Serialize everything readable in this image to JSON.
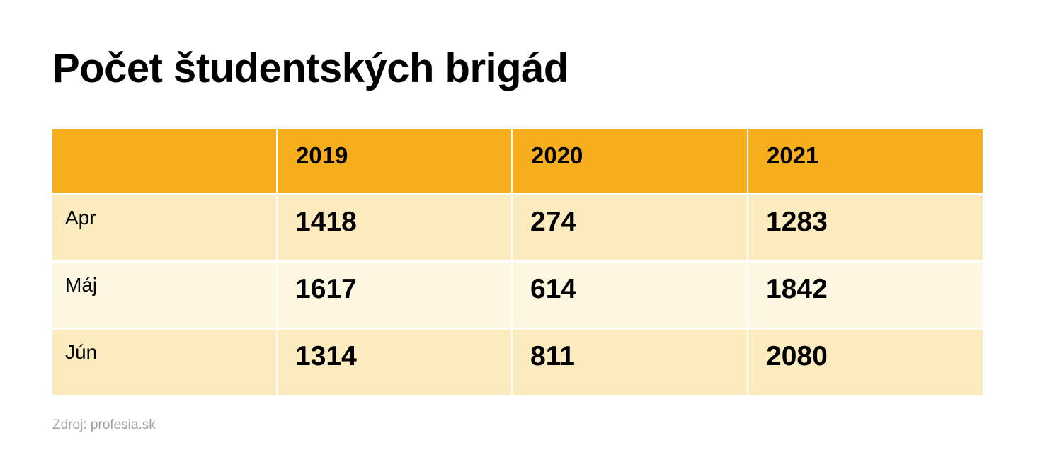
{
  "title": "Počet študentských brigád",
  "source": "Zdroj: profesia.sk",
  "colors": {
    "header_bg": "#f7ae1d",
    "row_odd_bg": "#fcebbe",
    "row_even_bg": "#fef7e2",
    "source_text": "#a6a098"
  },
  "chart_data": {
    "type": "table",
    "title": "Počet študentských brigád",
    "columns": [
      "",
      "2019",
      "2020",
      "2021"
    ],
    "rows": [
      {
        "label": "Apr",
        "values": [
          "1418",
          "274",
          "1283"
        ]
      },
      {
        "label": "Máj",
        "values": [
          "1617",
          "614",
          "1842"
        ]
      },
      {
        "label": "Jún",
        "values": [
          "1314",
          "811",
          "2080"
        ]
      }
    ]
  }
}
